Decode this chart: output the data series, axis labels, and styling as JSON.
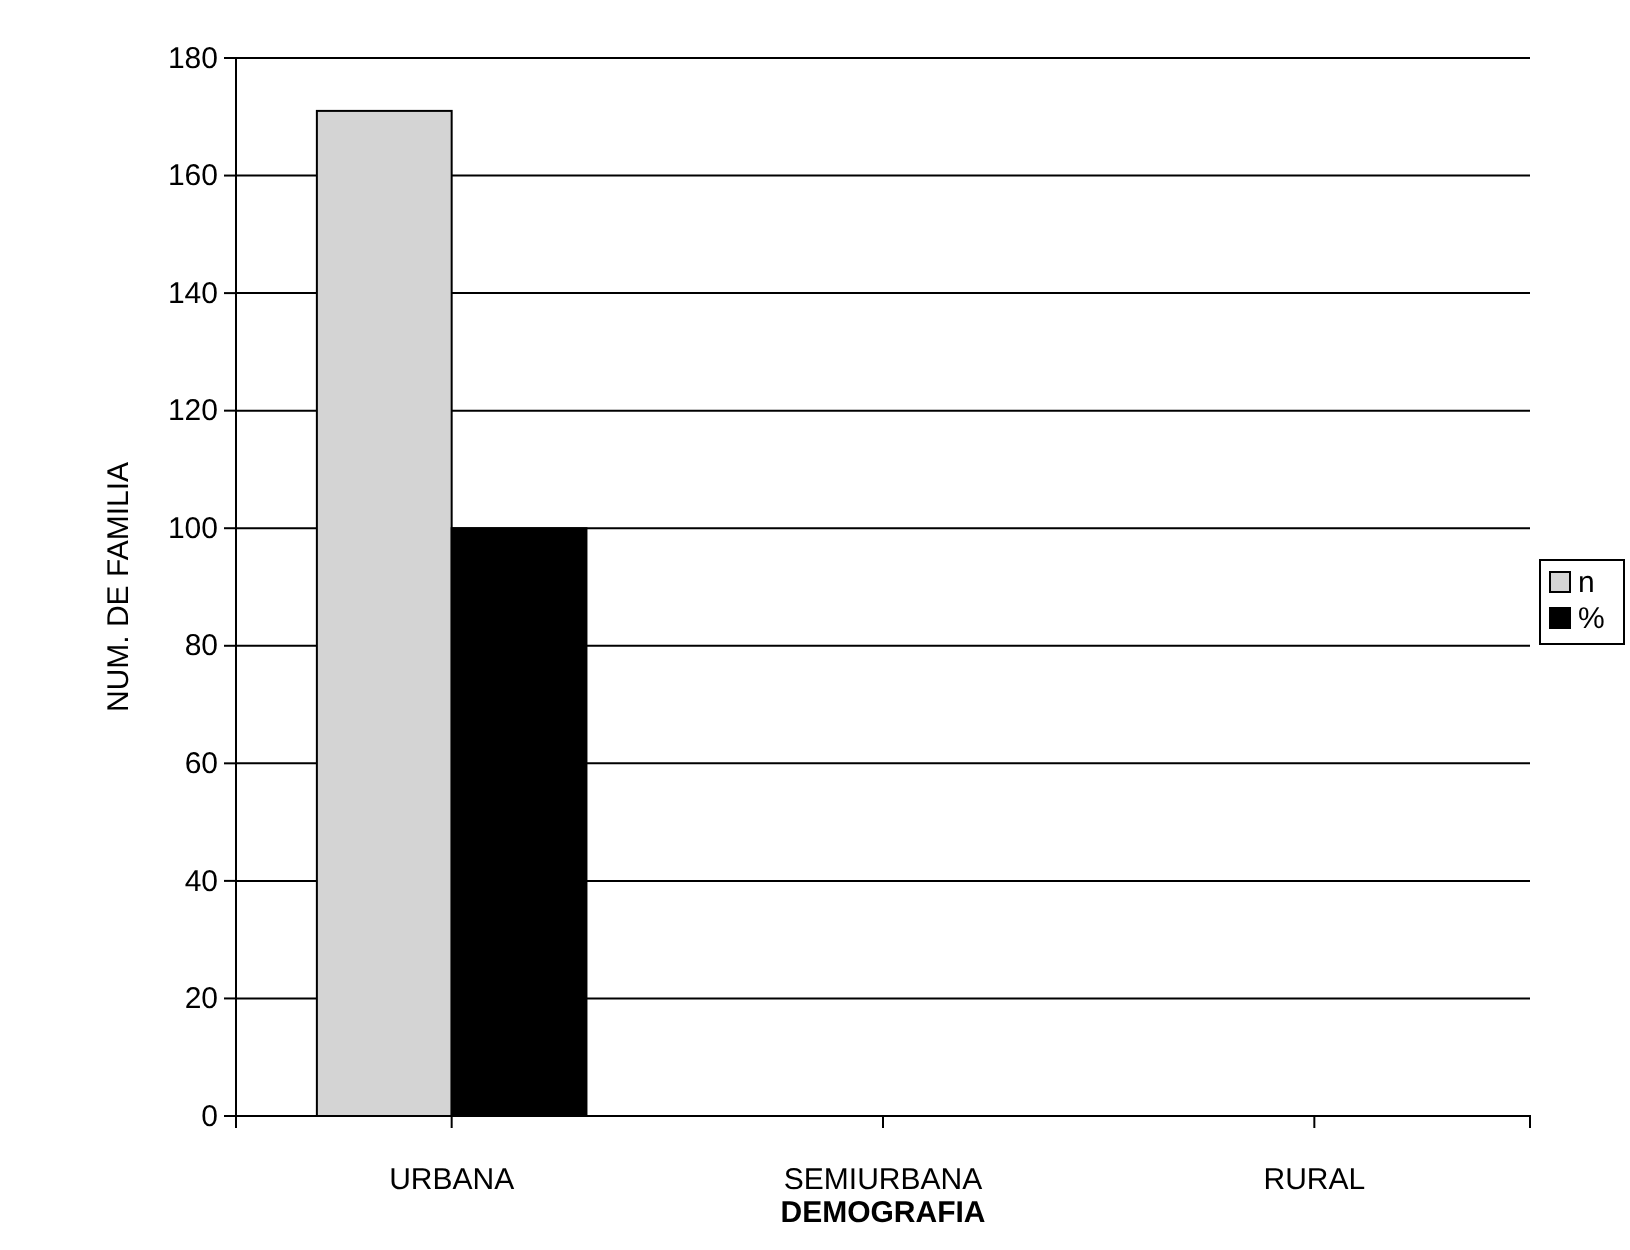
{
  "chart_data": {
    "type": "bar",
    "xlabel": "DEMOGRAFIA",
    "ylabel": "NUM. DE FAMILIA",
    "categories": [
      "URBANA",
      "SEMIURBANA",
      "RURAL"
    ],
    "series": [
      {
        "name": "n",
        "color": "#d4d4d4",
        "values": [
          171,
          0,
          0
        ]
      },
      {
        "name": "%",
        "color": "#000000",
        "values": [
          100,
          0,
          0
        ]
      }
    ],
    "ylim": [
      0,
      180
    ],
    "yticks": [
      0,
      20,
      40,
      60,
      80,
      100,
      120,
      140,
      160,
      180
    ],
    "grid": "y",
    "legend": "right"
  }
}
